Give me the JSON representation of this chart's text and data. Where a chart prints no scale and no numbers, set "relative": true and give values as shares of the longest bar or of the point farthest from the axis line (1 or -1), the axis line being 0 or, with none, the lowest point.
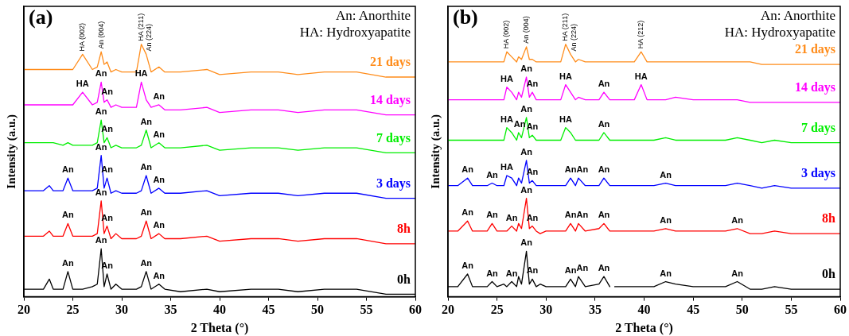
{
  "chart_data": [
    {
      "type": "line",
      "title": "(a)",
      "xlabel": "2 Theta (°)",
      "ylabel": "Intensity (a.u.)",
      "relative": true,
      "marker": "none",
      "legend": false,
      "grid": false,
      "x": [
        20,
        22,
        22.6,
        23,
        24,
        24.5,
        25,
        26,
        27,
        27.5,
        27.9,
        28.2,
        28.5,
        28.9,
        29.4,
        30,
        31.5,
        32,
        32.5,
        33,
        33.8,
        34.4,
        36,
        38.7,
        40,
        43.2,
        46,
        48,
        50.7,
        54,
        57,
        60
      ],
      "xlim": [
        20,
        60
      ],
      "xticks": [
        20,
        25,
        30,
        35,
        40,
        45,
        50,
        55,
        60
      ],
      "series": [
        {
          "name": "21 days",
          "color": "#ff8c1a",
          "values": [
            0.9,
            0.9,
            0.9,
            0.9,
            0.9,
            0.9,
            0.9,
            0.96,
            0.9,
            0.91,
            0.97,
            0.92,
            0.93,
            0.89,
            0.9,
            0.89,
            0.89,
            1.0,
            0.96,
            0.89,
            0.91,
            0.89,
            0.89,
            0.9,
            0.88,
            0.89,
            0.89,
            0.88,
            0.89,
            0.89,
            0.87,
            0.87
          ]
        },
        {
          "name": "14 days",
          "color": "#ff00ff",
          "values": [
            0.76,
            0.76,
            0.76,
            0.76,
            0.76,
            0.76,
            0.76,
            0.81,
            0.76,
            0.77,
            0.85,
            0.77,
            0.78,
            0.75,
            0.76,
            0.75,
            0.75,
            0.85,
            0.78,
            0.75,
            0.76,
            0.74,
            0.74,
            0.75,
            0.73,
            0.74,
            0.74,
            0.73,
            0.74,
            0.74,
            0.72,
            0.72
          ]
        },
        {
          "name": "7 days",
          "color": "#00ee00",
          "values": [
            0.61,
            0.61,
            0.61,
            0.61,
            0.6,
            0.61,
            0.6,
            0.6,
            0.6,
            0.61,
            0.7,
            0.61,
            0.63,
            0.59,
            0.6,
            0.59,
            0.59,
            0.6,
            0.66,
            0.59,
            0.61,
            0.59,
            0.59,
            0.6,
            0.58,
            0.59,
            0.59,
            0.58,
            0.59,
            0.59,
            0.57,
            0.57
          ]
        },
        {
          "name": "3 days",
          "color": "#0000ff",
          "values": [
            0.42,
            0.42,
            0.44,
            0.42,
            0.42,
            0.47,
            0.42,
            0.42,
            0.42,
            0.43,
            0.56,
            0.43,
            0.47,
            0.41,
            0.42,
            0.41,
            0.41,
            0.42,
            0.48,
            0.41,
            0.43,
            0.41,
            0.41,
            0.42,
            0.4,
            0.41,
            0.41,
            0.4,
            0.41,
            0.41,
            0.39,
            0.39
          ]
        },
        {
          "name": "8h",
          "color": "#ff0000",
          "values": [
            0.24,
            0.24,
            0.26,
            0.24,
            0.24,
            0.29,
            0.24,
            0.24,
            0.24,
            0.25,
            0.38,
            0.25,
            0.28,
            0.23,
            0.25,
            0.23,
            0.23,
            0.24,
            0.3,
            0.23,
            0.25,
            0.23,
            0.23,
            0.24,
            0.22,
            0.23,
            0.23,
            0.22,
            0.23,
            0.23,
            0.21,
            0.21
          ]
        },
        {
          "name": "0h",
          "color": "#000000",
          "values": [
            0.03,
            0.03,
            0.07,
            0.03,
            0.03,
            0.1,
            0.03,
            0.03,
            0.04,
            0.05,
            0.19,
            0.04,
            0.09,
            0.03,
            0.05,
            0.03,
            0.03,
            0.04,
            0.1,
            0.03,
            0.05,
            0.03,
            0.02,
            0.03,
            0.02,
            0.03,
            0.03,
            0.02,
            0.03,
            0.03,
            0.01,
            0.01
          ]
        }
      ],
      "annotations": [
        "An: Anorthite",
        "HA: Hydroxyapatite",
        {
          "text": "HA (002)",
          "x": 26,
          "y": 0.96
        },
        {
          "text": "An (004)",
          "x": 27.9,
          "y": 0.97
        },
        {
          "text": "HA (211)",
          "x": 32,
          "y": 1.0
        },
        {
          "text": "An (224)",
          "x": 32.5,
          "y": 0.96
        },
        {
          "text": "HA",
          "x": 26,
          "y": 0.81
        },
        {
          "text": "An",
          "x": 27.9,
          "y": 0.85
        },
        {
          "text": "An",
          "x": 28.5,
          "y": 0.78
        },
        {
          "text": "HA",
          "x": 32,
          "y": 0.85
        },
        {
          "text": "An",
          "x": 33.8,
          "y": 0.76
        },
        {
          "text": "An",
          "x": 27.9,
          "y": 0.7
        },
        {
          "text": "An",
          "x": 28.5,
          "y": 0.63
        },
        {
          "text": "An",
          "x": 32.5,
          "y": 0.66
        },
        {
          "text": "An",
          "x": 33.8,
          "y": 0.61
        },
        {
          "text": "An",
          "x": 24.5,
          "y": 0.47
        },
        {
          "text": "An",
          "x": 27.9,
          "y": 0.56
        },
        {
          "text": "An",
          "x": 28.5,
          "y": 0.47
        },
        {
          "text": "An",
          "x": 32.5,
          "y": 0.48
        },
        {
          "text": "An",
          "x": 33.8,
          "y": 0.43
        },
        {
          "text": "An",
          "x": 24.5,
          "y": 0.29
        },
        {
          "text": "An",
          "x": 27.9,
          "y": 0.38
        },
        {
          "text": "An",
          "x": 28.5,
          "y": 0.28
        },
        {
          "text": "An",
          "x": 32.5,
          "y": 0.3
        },
        {
          "text": "An",
          "x": 33.8,
          "y": 0.25
        },
        {
          "text": "An",
          "x": 24.5,
          "y": 0.1
        },
        {
          "text": "An",
          "x": 27.9,
          "y": 0.19
        },
        {
          "text": "An",
          "x": 28.5,
          "y": 0.09
        },
        {
          "text": "An",
          "x": 32.5,
          "y": 0.1
        },
        {
          "text": "An",
          "x": 33.8,
          "y": 0.05
        }
      ]
    },
    {
      "type": "line",
      "title": "(b)",
      "xlabel": "2 Theta (°)",
      "ylabel": "Intensity (a.u.)",
      "relative": true,
      "marker": "none",
      "legend": false,
      "grid": false,
      "x": [
        20,
        21,
        22,
        22.5,
        24,
        24.5,
        25,
        25.7,
        26,
        26.5,
        27,
        27.2,
        27.5,
        28,
        28.3,
        28.6,
        29,
        29.4,
        30,
        31.5,
        32,
        32.5,
        33,
        33.3,
        34,
        35.4,
        35.9,
        36.5,
        36.7,
        37,
        38,
        39,
        39.7,
        40.3,
        41,
        42.2,
        43.2,
        45,
        47,
        48.3,
        49.5,
        50.8,
        52,
        53.3,
        55,
        57,
        60
      ],
      "xlim": [
        20,
        60
      ],
      "xticks": [
        20,
        25,
        30,
        35,
        40,
        45,
        50,
        55,
        60
      ],
      "series": [
        {
          "name": "21 days",
          "color": "#ff8c1a",
          "values": [
            0.93,
            0.93,
            0.93,
            0.93,
            0.93,
            0.93,
            0.93,
            0.93,
            0.97,
            0.95,
            0.93,
            0.95,
            0.94,
            0.99,
            0.94,
            0.94,
            0.93,
            0.93,
            0.93,
            0.93,
            1.0,
            0.96,
            0.93,
            0.94,
            0.93,
            0.93,
            0.93,
            0.93,
            0.93,
            0.93,
            0.93,
            0.93,
            0.97,
            0.93,
            0.93,
            0.93,
            0.93,
            0.93,
            0.93,
            0.93,
            0.93,
            0.93,
            0.92,
            0.92,
            0.92,
            0.92,
            0.92
          ]
        },
        {
          "name": "14 days",
          "color": "#ff00ff",
          "values": [
            0.78,
            0.78,
            0.78,
            0.78,
            0.78,
            0.78,
            0.78,
            0.78,
            0.83,
            0.81,
            0.78,
            0.81,
            0.79,
            0.87,
            0.79,
            0.81,
            0.78,
            0.78,
            0.78,
            0.78,
            0.84,
            0.81,
            0.78,
            0.79,
            0.78,
            0.78,
            0.81,
            0.78,
            0.78,
            0.78,
            0.78,
            0.78,
            0.84,
            0.78,
            0.78,
            0.78,
            0.79,
            0.78,
            0.78,
            0.78,
            0.78,
            0.77,
            0.77,
            0.77,
            0.77,
            0.77,
            0.77
          ]
        },
        {
          "name": "7 days",
          "color": "#00ee00",
          "values": [
            0.62,
            0.62,
            0.62,
            0.62,
            0.62,
            0.62,
            0.62,
            0.62,
            0.67,
            0.65,
            0.62,
            0.65,
            0.63,
            0.71,
            0.63,
            0.64,
            0.62,
            0.62,
            0.62,
            0.62,
            0.67,
            0.65,
            0.62,
            0.62,
            0.62,
            0.62,
            0.65,
            0.62,
            0.62,
            0.62,
            0.62,
            0.62,
            0.62,
            0.62,
            0.62,
            0.63,
            0.62,
            0.62,
            0.62,
            0.62,
            0.63,
            0.62,
            0.61,
            0.62,
            0.61,
            0.61,
            0.61
          ]
        },
        {
          "name": "3 days",
          "color": "#0000ff",
          "values": [
            0.44,
            0.44,
            0.47,
            0.44,
            0.44,
            0.45,
            0.44,
            0.44,
            0.48,
            0.47,
            0.44,
            0.47,
            0.45,
            0.54,
            0.45,
            0.46,
            0.44,
            0.44,
            0.44,
            0.44,
            0.44,
            0.47,
            0.44,
            0.47,
            0.44,
            0.44,
            0.47,
            0.44,
            0.44,
            0.44,
            0.44,
            0.44,
            0.44,
            0.44,
            0.44,
            0.45,
            0.44,
            0.44,
            0.44,
            0.44,
            0.45,
            0.44,
            0.43,
            0.44,
            0.43,
            0.43,
            0.43
          ]
        },
        {
          "name": "8h",
          "color": "#ff0000",
          "values": [
            0.26,
            0.26,
            0.3,
            0.26,
            0.26,
            0.29,
            0.26,
            0.26,
            0.26,
            0.28,
            0.26,
            0.29,
            0.27,
            0.39,
            0.27,
            0.28,
            0.26,
            0.25,
            0.26,
            0.26,
            0.26,
            0.29,
            0.26,
            0.29,
            0.26,
            0.27,
            0.29,
            0.26,
            0.26,
            0.26,
            0.26,
            0.26,
            0.26,
            0.26,
            0.26,
            0.27,
            0.26,
            0.26,
            0.26,
            0.26,
            0.27,
            0.25,
            0.25,
            0.26,
            0.25,
            0.25,
            0.25
          ]
        },
        {
          "name": "0h",
          "color": "#000000",
          "values": [
            0.04,
            0.04,
            0.09,
            0.04,
            0.04,
            0.06,
            0.04,
            0.05,
            0.04,
            0.06,
            0.04,
            0.08,
            0.05,
            0.18,
            0.05,
            0.07,
            0.04,
            0.05,
            0.04,
            0.04,
            0.04,
            0.07,
            0.04,
            0.08,
            0.04,
            0.05,
            0.08,
            0.04,
            null,
            0.04,
            0.04,
            0.04,
            0.04,
            0.04,
            0.04,
            0.06,
            0.05,
            0.04,
            0.04,
            0.04,
            0.06,
            0.03,
            0.03,
            0.04,
            0.03,
            0.03,
            0.03
          ]
        }
      ],
      "annotations": [
        "An: Anorthite",
        "HA: Hydroxyapatite",
        {
          "text": "HA (002)",
          "x": 26,
          "y": 0.97
        },
        {
          "text": "An (004)",
          "x": 28,
          "y": 0.99
        },
        {
          "text": "HA (211)",
          "x": 32,
          "y": 1.0
        },
        {
          "text": "An (224)",
          "x": 32.5,
          "y": 0.96
        },
        {
          "text": "HA (212)",
          "x": 39.7,
          "y": 0.97
        },
        {
          "text": "HA",
          "x": 26,
          "y": 0.83
        },
        {
          "text": "An",
          "x": 28,
          "y": 0.87
        },
        {
          "text": "An",
          "x": 28.6,
          "y": 0.81
        },
        {
          "text": "HA",
          "x": 32,
          "y": 0.84
        },
        {
          "text": "An",
          "x": 35.9,
          "y": 0.81
        },
        {
          "text": "HA",
          "x": 39.7,
          "y": 0.84
        },
        {
          "text": "HA",
          "x": 26,
          "y": 0.67
        },
        {
          "text": "An",
          "x": 26.5,
          "y": 0.65
        },
        {
          "text": "An",
          "x": 28,
          "y": 0.71
        },
        {
          "text": "An",
          "x": 28.6,
          "y": 0.64
        },
        {
          "text": "HA",
          "x": 32,
          "y": 0.67
        },
        {
          "text": "An",
          "x": 35.9,
          "y": 0.65
        },
        {
          "text": "An",
          "x": 22,
          "y": 0.47
        },
        {
          "text": "An",
          "x": 24.5,
          "y": 0.45
        },
        {
          "text": "HA",
          "x": 26,
          "y": 0.48
        },
        {
          "text": "An",
          "x": 28,
          "y": 0.54
        },
        {
          "text": "An",
          "x": 28.6,
          "y": 0.46
        },
        {
          "text": "An",
          "x": 32.5,
          "y": 0.47
        },
        {
          "text": "An",
          "x": 33.3,
          "y": 0.47
        },
        {
          "text": "An",
          "x": 35.9,
          "y": 0.47
        },
        {
          "text": "An",
          "x": 42.2,
          "y": 0.45
        },
        {
          "text": "An",
          "x": 22,
          "y": 0.3
        },
        {
          "text": "An",
          "x": 24.5,
          "y": 0.29
        },
        {
          "text": "An",
          "x": 26.5,
          "y": 0.28
        },
        {
          "text": "An",
          "x": 28,
          "y": 0.39
        },
        {
          "text": "An",
          "x": 28.6,
          "y": 0.28
        },
        {
          "text": "An",
          "x": 32.5,
          "y": 0.29
        },
        {
          "text": "An",
          "x": 33.3,
          "y": 0.29
        },
        {
          "text": "An",
          "x": 35.9,
          "y": 0.29
        },
        {
          "text": "An",
          "x": 42.2,
          "y": 0.27
        },
        {
          "text": "An",
          "x": 49.5,
          "y": 0.27
        },
        {
          "text": "An",
          "x": 22,
          "y": 0.09
        },
        {
          "text": "An",
          "x": 24.5,
          "y": 0.06
        },
        {
          "text": "An",
          "x": 26.5,
          "y": 0.06
        },
        {
          "text": "An",
          "x": 28,
          "y": 0.18
        },
        {
          "text": "An",
          "x": 28.6,
          "y": 0.07
        },
        {
          "text": "An",
          "x": 32.5,
          "y": 0.07
        },
        {
          "text": "An",
          "x": 33.3,
          "y": 0.08
        },
        {
          "text": "An",
          "x": 35.9,
          "y": 0.08
        },
        {
          "text": "An",
          "x": 42.2,
          "y": 0.06
        },
        {
          "text": "An",
          "x": 49.5,
          "y": 0.06
        }
      ]
    }
  ]
}
